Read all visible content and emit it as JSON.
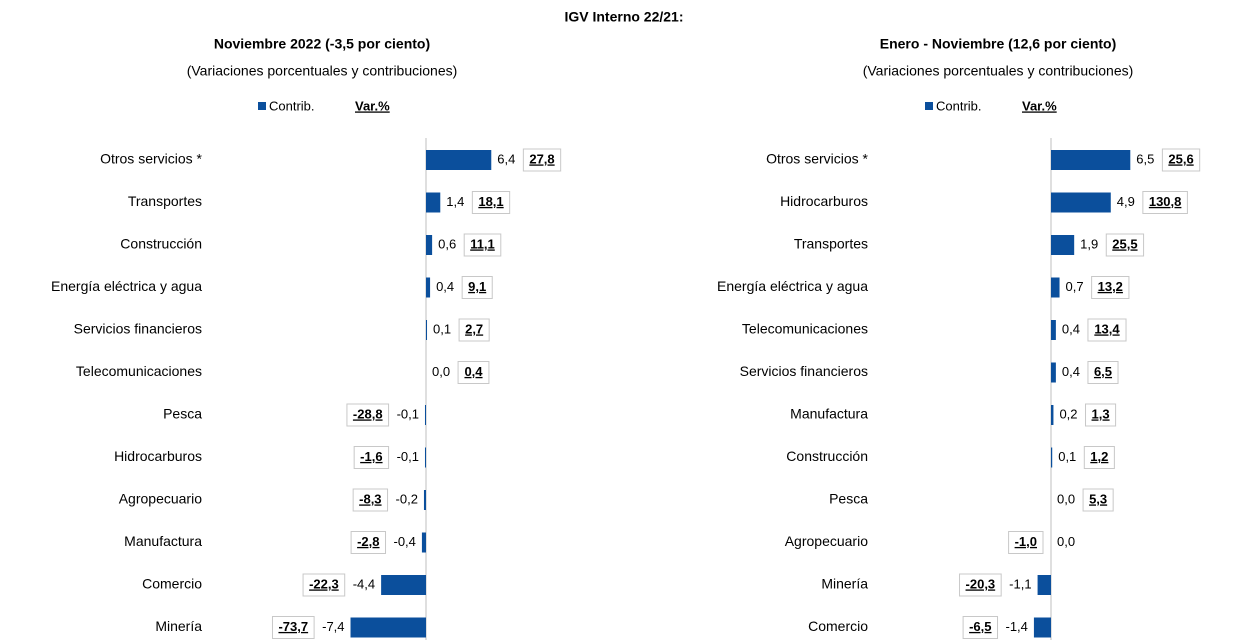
{
  "title": "IGV Interno 22/21:",
  "chart_data": [
    {
      "type": "bar",
      "orientation": "horizontal",
      "title": "Noviembre 2022 (-3,5 por ciento)",
      "subtitle": "(Variaciones porcentuales y contribuciones)",
      "categories": [
        "Otros servicios *",
        "Transportes",
        "Construcción",
        "Energía eléctrica y agua",
        "Servicios financieros",
        "Telecomunicaciones",
        "Pesca",
        "Hidrocarburos",
        "Agropecuario",
        "Manufactura",
        "Comercio",
        "Minería"
      ],
      "series": [
        {
          "name": "Contrib.",
          "color": "#0b4f9c",
          "values": [
            6.4,
            1.4,
            0.6,
            0.4,
            0.1,
            0.0,
            -0.1,
            -0.1,
            -0.2,
            -0.4,
            -4.4,
            -7.4
          ],
          "value_labels": [
            "6,4",
            "1,4",
            "0,6",
            "0,4",
            "0,1",
            "0,0",
            "-0,1",
            "-0,1",
            "-0,2",
            "-0,4",
            "-4,4",
            "-7,4"
          ]
        },
        {
          "name": "Var.%",
          "values": [
            27.8,
            18.1,
            11.1,
            9.1,
            2.7,
            0.4,
            -28.8,
            -1.6,
            -8.3,
            -2.8,
            -22.3,
            -73.7
          ],
          "value_labels": [
            "27,8",
            "18,1",
            "11,1",
            "9,1",
            "2,7",
            "0,4",
            "-28,8",
            "-1,6",
            "-8,3",
            "-2,8",
            "-22,3",
            "-73,7"
          ]
        }
      ],
      "xlim": [
        -8,
        8
      ]
    },
    {
      "type": "bar",
      "orientation": "horizontal",
      "title": "Enero - Noviembre (12,6 por ciento)",
      "subtitle": "(Variaciones porcentuales y contribuciones)",
      "categories": [
        "Otros servicios *",
        "Hidrocarburos",
        "Transportes",
        "Energía eléctrica y agua",
        "Telecomunicaciones",
        "Servicios financieros",
        "Manufactura",
        "Construcción",
        "Pesca",
        "Agropecuario",
        "Minería",
        "Comercio"
      ],
      "series": [
        {
          "name": "Contrib.",
          "color": "#0b4f9c",
          "values": [
            6.5,
            4.9,
            1.9,
            0.7,
            0.4,
            0.4,
            0.2,
            0.1,
            0.0,
            0.0,
            -1.1,
            -1.4
          ],
          "value_labels": [
            "6,5",
            "4,9",
            "1,9",
            "0,7",
            "0,4",
            "0,4",
            "0,2",
            "0,1",
            "0,0",
            "0,0",
            "-1,1",
            "-1,4"
          ]
        },
        {
          "name": "Var.%",
          "values": [
            25.6,
            130.8,
            25.5,
            13.2,
            13.4,
            6.5,
            1.3,
            1.2,
            5.3,
            -1.0,
            -20.3,
            -6.5
          ],
          "value_labels": [
            "25,6",
            "130,8",
            "25,5",
            "13,2",
            "13,4",
            "6,5",
            "1,3",
            "1,2",
            "5,3",
            "-1,0",
            "-20,3",
            "-6,5"
          ]
        }
      ],
      "xlim": [
        -2,
        7
      ]
    }
  ]
}
